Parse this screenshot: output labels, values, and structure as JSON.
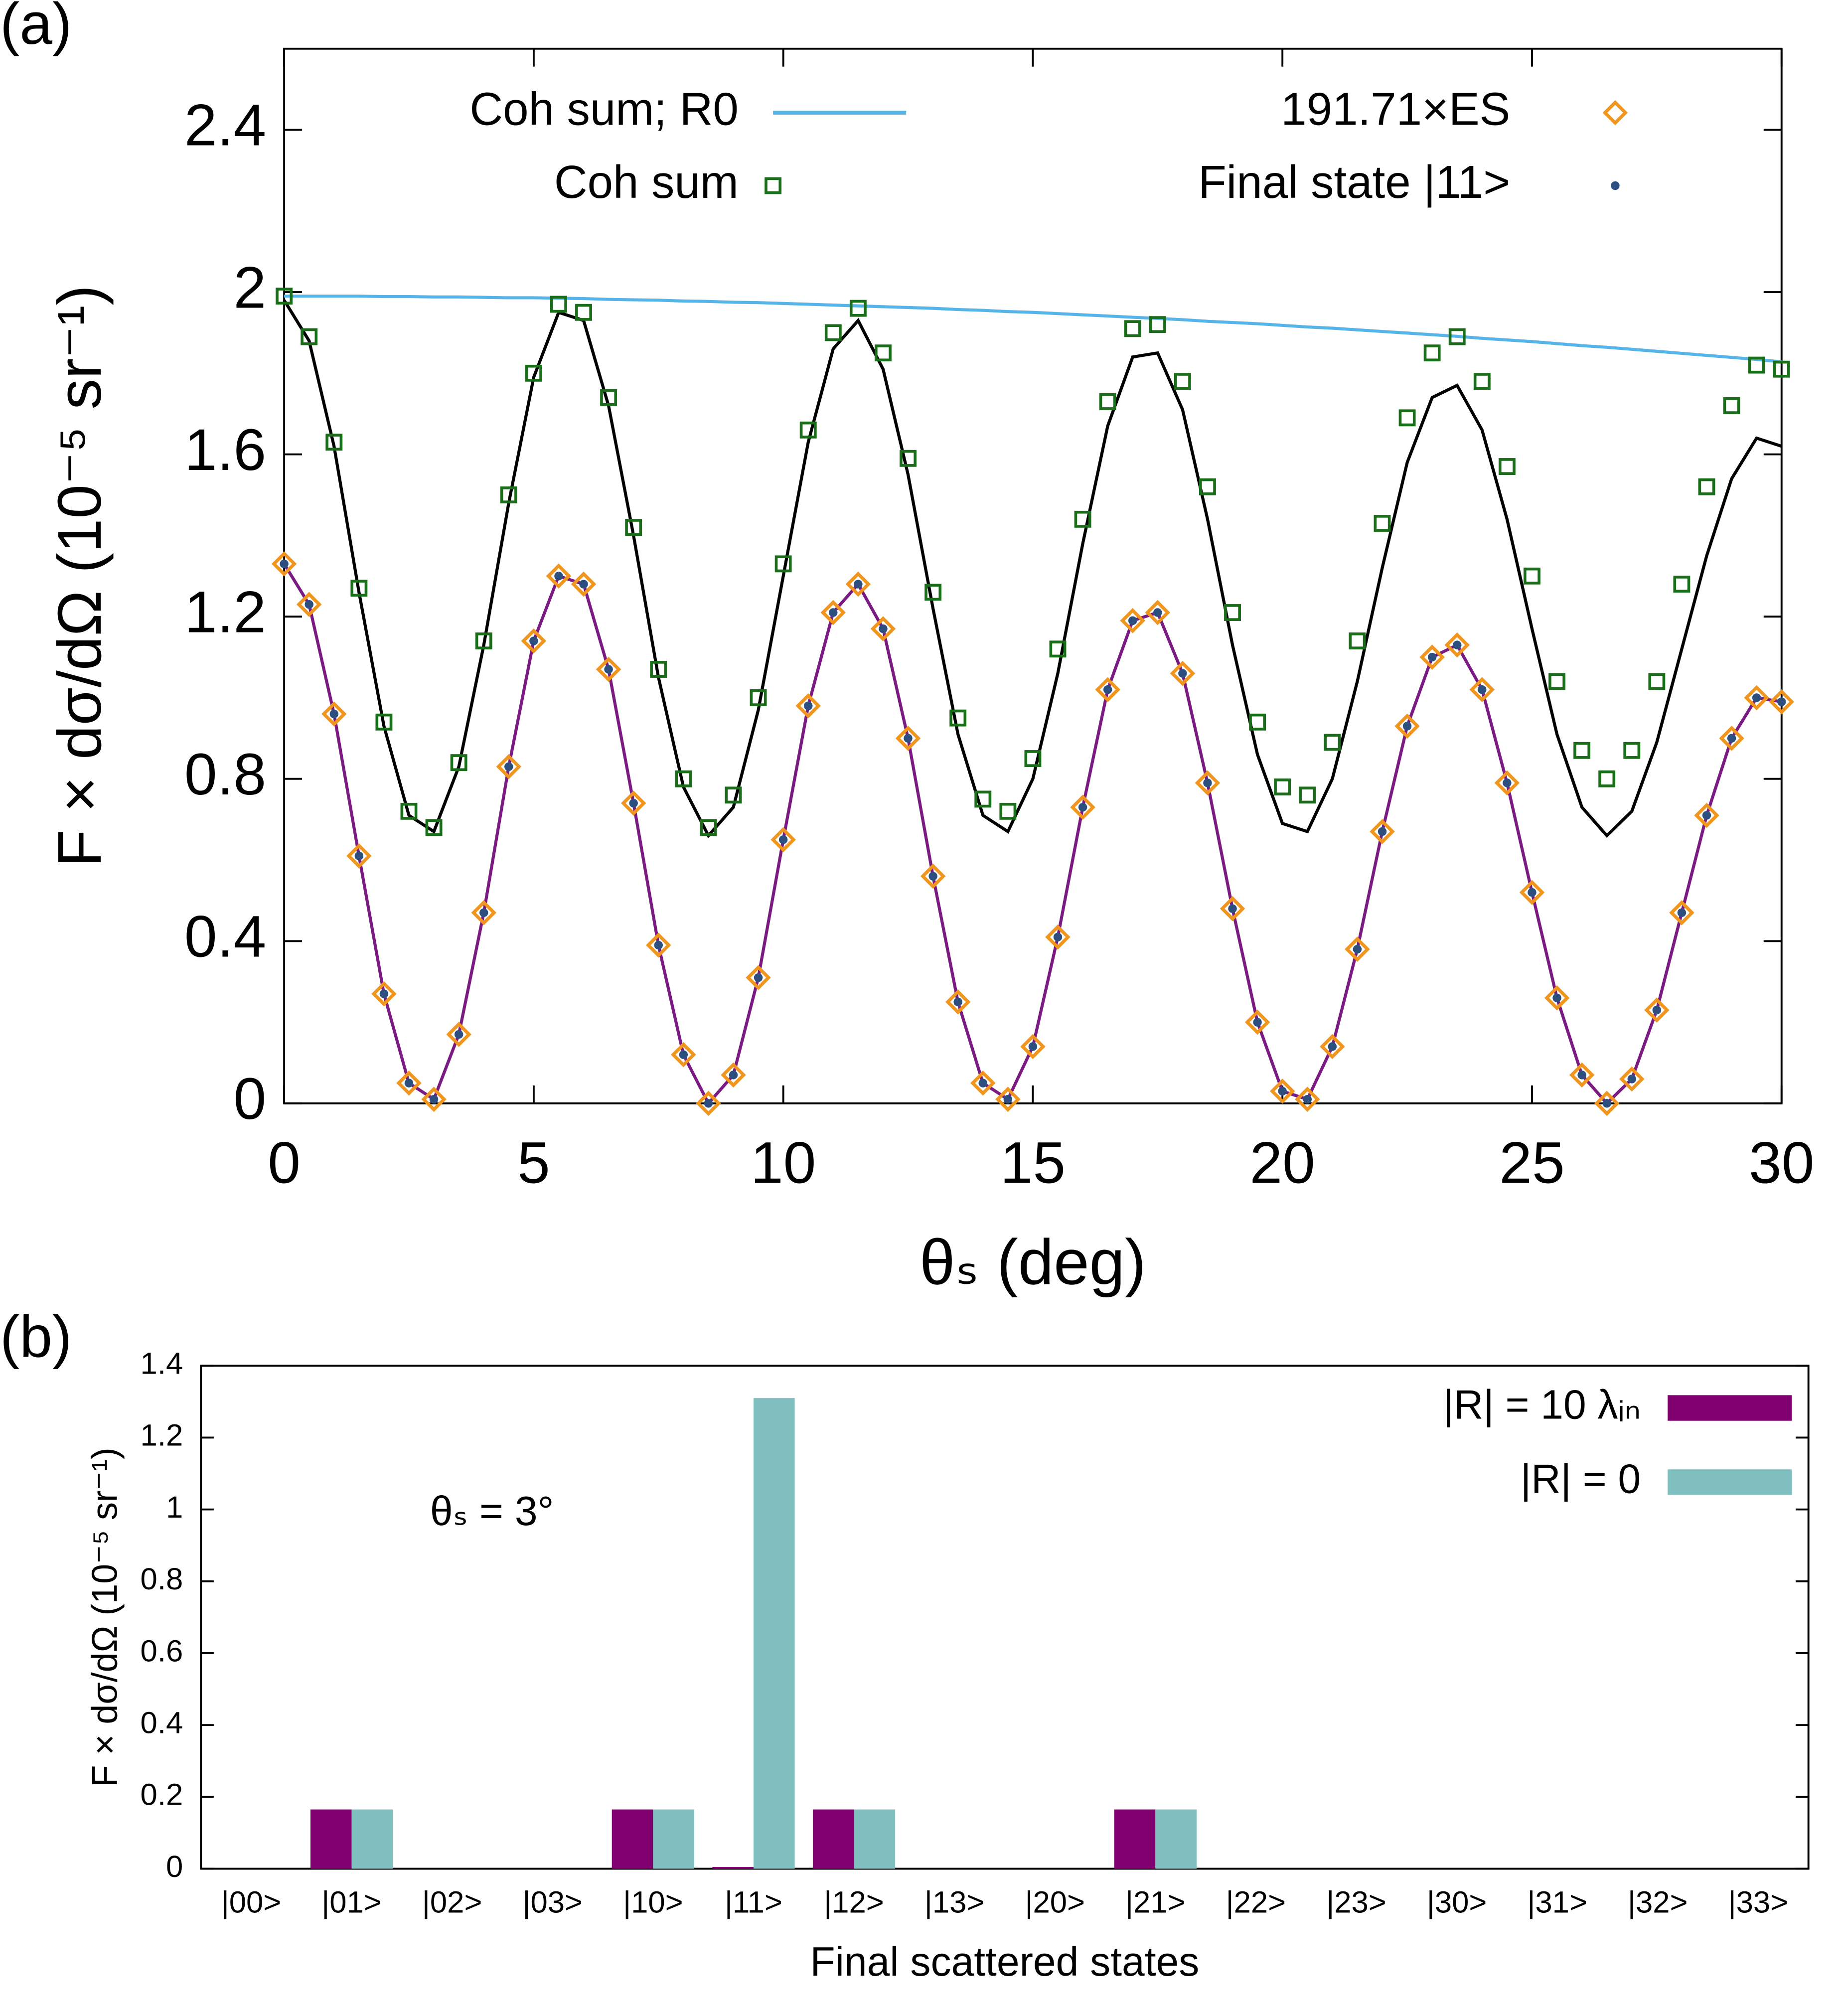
{
  "chart_data": [
    {
      "type": "line",
      "panel_label": "(a)",
      "x_label": "θₛ (deg)",
      "y_label": "F × dσ/dΩ (10⁻⁵ sr⁻¹)",
      "xlim": [
        0,
        30
      ],
      "xticks": [
        0,
        5,
        10,
        15,
        20,
        25,
        30
      ],
      "ylim": [
        0,
        2.6
      ],
      "yticks": [
        0,
        0.4,
        0.8,
        1.2,
        1.6,
        2,
        2.4
      ],
      "legend": "top",
      "x": [
        0,
        0.5,
        1,
        1.5,
        2,
        2.5,
        3,
        3.5,
        4,
        4.5,
        5,
        5.5,
        6,
        6.5,
        7,
        7.5,
        8,
        8.5,
        9,
        9.5,
        10,
        10.5,
        11,
        11.5,
        12,
        12.5,
        13,
        13.5,
        14,
        14.5,
        15,
        15.5,
        16,
        16.5,
        17,
        17.5,
        18,
        18.5,
        19,
        19.5,
        20,
        20.5,
        21,
        21.5,
        22,
        22.5,
        23,
        23.5,
        24,
        24.5,
        25,
        25.5,
        26,
        26.5,
        27,
        27.5,
        28,
        28.5,
        29,
        29.5,
        30
      ],
      "series": [
        {
          "name": "Coh sum; R0",
          "color": "#56b4e9",
          "marker": "line",
          "values": [
            1.99,
            1.99,
            1.99,
            1.99,
            1.989,
            1.989,
            1.988,
            1.988,
            1.987,
            1.986,
            1.986,
            1.985,
            1.984,
            1.982,
            1.981,
            1.98,
            1.978,
            1.977,
            1.975,
            1.974,
            1.972,
            1.97,
            1.968,
            1.966,
            1.964,
            1.962,
            1.96,
            1.957,
            1.955,
            1.952,
            1.95,
            1.947,
            1.944,
            1.941,
            1.938,
            1.935,
            1.932,
            1.928,
            1.925,
            1.922,
            1.918,
            1.914,
            1.911,
            1.907,
            1.903,
            1.899,
            1.895,
            1.891,
            1.886,
            1.882,
            1.878,
            1.873,
            1.868,
            1.864,
            1.859,
            1.854,
            1.849,
            1.844,
            1.839,
            1.834,
            1.828
          ]
        },
        {
          "name": "Coh sum",
          "color": "#1a6e1a",
          "marker": "square",
          "values": [
            1.99,
            1.89,
            1.63,
            1.27,
            0.94,
            0.72,
            0.68,
            0.84,
            1.14,
            1.5,
            1.8,
            1.97,
            1.95,
            1.74,
            1.42,
            1.07,
            0.8,
            0.68,
            0.76,
            1.0,
            1.33,
            1.66,
            1.9,
            1.96,
            1.85,
            1.59,
            1.26,
            0.95,
            0.75,
            0.72,
            0.85,
            1.12,
            1.44,
            1.73,
            1.91,
            1.92,
            1.78,
            1.52,
            1.21,
            0.94,
            0.78,
            0.76,
            0.89,
            1.14,
            1.43,
            1.69,
            1.85,
            1.89,
            1.78,
            1.57,
            1.3,
            1.04,
            0.87,
            0.8,
            0.87,
            1.04,
            1.28,
            1.52,
            1.72,
            1.82,
            1.81
          ]
        },
        {
          "name": "191.71×ES",
          "color": "#f0961e",
          "marker": "diamond",
          "values": [
            1.33,
            1.23,
            0.96,
            0.61,
            0.27,
            0.05,
            0.01,
            0.17,
            0.47,
            0.83,
            1.14,
            1.3,
            1.28,
            1.07,
            0.74,
            0.39,
            0.12,
            0,
            0.07,
            0.31,
            0.65,
            0.98,
            1.21,
            1.28,
            1.17,
            0.9,
            0.56,
            0.25,
            0.05,
            0.01,
            0.14,
            0.41,
            0.73,
            1.02,
            1.19,
            1.21,
            1.06,
            0.79,
            0.48,
            0.2,
            0.03,
            0.01,
            0.14,
            0.38,
            0.67,
            0.93,
            1.1,
            1.13,
            1.02,
            0.79,
            0.52,
            0.26,
            0.07,
            0,
            0.06,
            0.23,
            0.47,
            0.71,
            0.9,
            1.0,
            0.99
          ]
        },
        {
          "name": "Final state |11>",
          "color": "#2c4f80",
          "marker": "dot",
          "values": [
            1.33,
            1.23,
            0.96,
            0.61,
            0.27,
            0.05,
            0.01,
            0.17,
            0.47,
            0.83,
            1.14,
            1.3,
            1.28,
            1.07,
            0.74,
            0.39,
            0.12,
            0,
            0.07,
            0.31,
            0.65,
            0.98,
            1.21,
            1.28,
            1.17,
            0.9,
            0.56,
            0.25,
            0.05,
            0.01,
            0.14,
            0.41,
            0.73,
            1.02,
            1.19,
            1.21,
            1.06,
            0.79,
            0.48,
            0.2,
            0.03,
            0.01,
            0.14,
            0.38,
            0.67,
            0.93,
            1.1,
            1.13,
            1.02,
            0.79,
            0.52,
            0.26,
            0.07,
            0,
            0.06,
            0.23,
            0.47,
            0.71,
            0.9,
            1.0,
            0.99
          ]
        },
        {
          "color": "#000000",
          "marker": "line",
          "values": [
            1.98,
            1.88,
            1.62,
            1.26,
            0.93,
            0.71,
            0.67,
            0.83,
            1.13,
            1.48,
            1.79,
            1.95,
            1.93,
            1.72,
            1.4,
            1.05,
            0.78,
            0.66,
            0.73,
            0.97,
            1.3,
            1.63,
            1.86,
            1.93,
            1.81,
            1.55,
            1.22,
            0.91,
            0.71,
            0.67,
            0.8,
            1.06,
            1.38,
            1.67,
            1.84,
            1.85,
            1.71,
            1.44,
            1.13,
            0.86,
            0.69,
            0.67,
            0.8,
            1.04,
            1.32,
            1.58,
            1.74,
            1.77,
            1.66,
            1.44,
            1.17,
            0.91,
            0.73,
            0.66,
            0.72,
            0.89,
            1.12,
            1.35,
            1.54,
            1.64,
            1.62
          ]
        },
        {
          "color": "#7a1a82",
          "marker": "line",
          "values": [
            1.33,
            1.23,
            0.96,
            0.61,
            0.27,
            0.05,
            0.01,
            0.17,
            0.47,
            0.83,
            1.14,
            1.3,
            1.28,
            1.07,
            0.74,
            0.39,
            0.12,
            0,
            0.07,
            0.31,
            0.65,
            0.98,
            1.21,
            1.28,
            1.17,
            0.9,
            0.56,
            0.25,
            0.05,
            0.01,
            0.14,
            0.41,
            0.73,
            1.02,
            1.19,
            1.21,
            1.06,
            0.79,
            0.48,
            0.2,
            0.03,
            0.01,
            0.14,
            0.38,
            0.67,
            0.93,
            1.1,
            1.13,
            1.02,
            0.79,
            0.52,
            0.26,
            0.07,
            0,
            0.06,
            0.23,
            0.47,
            0.71,
            0.9,
            1.0,
            0.99
          ]
        }
      ]
    },
    {
      "type": "bar",
      "panel_label": "(b)",
      "x_label": "Final scattered states",
      "y_label": "F × dσ/dΩ (10⁻⁵ sr⁻¹)",
      "annotation": "θₛ = 3°",
      "ylim": [
        0,
        1.4
      ],
      "yticks": [
        0,
        0.2,
        0.4,
        0.6,
        0.8,
        1,
        1.2,
        1.4
      ],
      "legend": "upper right",
      "categories": [
        "|00>",
        "|01>",
        "|02>",
        "|03>",
        "|10>",
        "|11>",
        "|12>",
        "|13>",
        "|20>",
        "|21>",
        "|22>",
        "|23>",
        "|30>",
        "|31>",
        "|32>",
        "|33>"
      ],
      "series": [
        {
          "name": "|R| = 10 λᵢₙ",
          "color": "#800070",
          "values": [
            0,
            0.165,
            0,
            0,
            0.165,
            0.005,
            0.165,
            0,
            0,
            0.165,
            0,
            0,
            0,
            0,
            0,
            0
          ]
        },
        {
          "name": "|R| = 0",
          "color": "#7fbfbf",
          "values": [
            0,
            0.165,
            0,
            0,
            0.165,
            1.31,
            0.165,
            0,
            0,
            0.165,
            0,
            0,
            0,
            0,
            0,
            0
          ]
        }
      ]
    }
  ]
}
